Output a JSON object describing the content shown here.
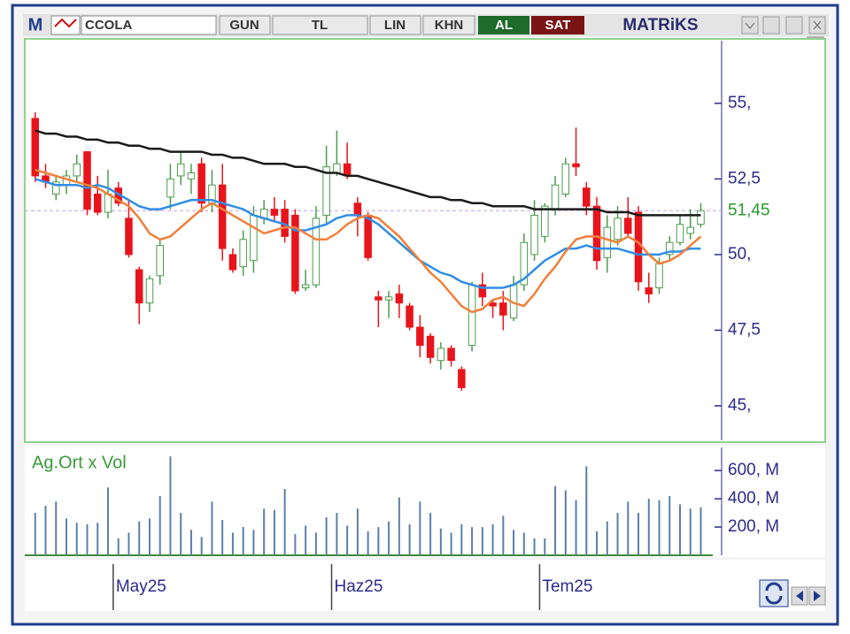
{
  "toolbar": {
    "logo": "M",
    "symbol": "CCOLA",
    "period": "GUN",
    "currency": "TL",
    "scale": "LIN",
    "style": "KHN",
    "buy": "AL",
    "sell": "SAT",
    "brand": "MATRiKS"
  },
  "chart_data": [
    {
      "type": "candlestick",
      "xlim": [
        -1,
        66
      ],
      "ylim": [
        43.8,
        57.1
      ],
      "yticks": [
        {
          "value": 55,
          "label": "55,"
        },
        {
          "value": 52.5,
          "label": "52,5"
        },
        {
          "value": 50,
          "label": "50,"
        },
        {
          "value": 47.5,
          "label": "47,5"
        },
        {
          "value": 45,
          "label": "45,"
        }
      ],
      "xticks": [
        {
          "value": 7.5,
          "label": "May25"
        },
        {
          "value": 28.5,
          "label": "Haz25"
        },
        {
          "value": 48.5,
          "label": "Tem25"
        }
      ],
      "last_price": {
        "value": 51.45,
        "label": "51,45"
      },
      "up_color": "#4e9a4e",
      "down_color": "#e8141c",
      "open": [
        54.5,
        52.6,
        52.0,
        52.3,
        52.6,
        53.4,
        52.0,
        51.4,
        52.2,
        51.2,
        49.5,
        48.4,
        49.3,
        51.9,
        52.6,
        52.5,
        53.0,
        51.7,
        52.3,
        50.0,
        49.6,
        49.8,
        51.2,
        51.5,
        51.5,
        51.3,
        48.9,
        49.0,
        51.3,
        52.7,
        53.0,
        51.7,
        51.3,
        48.6,
        48.5,
        48.7,
        48.3,
        47.6,
        47.3,
        46.5,
        46.9,
        46.2,
        47.0,
        49.0,
        48.4,
        48.4,
        47.9,
        49.0,
        50.0,
        50.6,
        51.5,
        52.0,
        53.0,
        52.2,
        51.6,
        49.9,
        50.5,
        51.2,
        51.4,
        48.9,
        48.9,
        50.0,
        50.4,
        50.7,
        51.0
      ],
      "high": [
        54.7,
        53.0,
        52.6,
        52.8,
        53.3,
        53.4,
        52.6,
        52.8,
        52.4,
        51.8,
        49.6,
        49.3,
        50.5,
        53.0,
        53.4,
        53.0,
        53.2,
        52.8,
        53.0,
        50.2,
        50.8,
        51.6,
        51.8,
        51.9,
        51.8,
        51.5,
        49.5,
        51.6,
        53.6,
        54.1,
        53.7,
        51.9,
        51.4,
        48.8,
        48.8,
        49.0,
        48.4,
        48.0,
        47.4,
        47.1,
        47.0,
        46.3,
        49.1,
        49.4,
        48.5,
        48.8,
        49.3,
        50.7,
        51.8,
        51.7,
        52.6,
        53.2,
        54.2,
        52.4,
        51.9,
        51.3,
        51.6,
        51.9,
        51.6,
        49.4,
        49.9,
        50.6,
        51.3,
        51.5,
        51.7
      ],
      "low": [
        52.4,
        52.2,
        51.8,
        52.0,
        52.4,
        51.3,
        51.3,
        51.2,
        51.6,
        49.9,
        47.7,
        48.1,
        49.0,
        51.5,
        52.3,
        52.0,
        51.4,
        51.4,
        49.8,
        49.4,
        49.3,
        49.4,
        51.0,
        51.1,
        50.4,
        48.7,
        48.8,
        48.9,
        51.0,
        52.6,
        52.5,
        50.6,
        49.8,
        47.6,
        47.9,
        47.9,
        47.5,
        46.6,
        46.4,
        46.2,
        46.3,
        45.5,
        46.8,
        48.3,
        47.9,
        47.5,
        47.8,
        48.8,
        49.8,
        50.4,
        51.3,
        51.9,
        52.6,
        51.3,
        49.5,
        49.4,
        50.3,
        50.6,
        48.8,
        48.4,
        48.7,
        49.8,
        50.3,
        50.5,
        50.9
      ],
      "close": [
        52.6,
        52.4,
        52.4,
        52.6,
        53.0,
        51.5,
        51.4,
        52.0,
        51.7,
        50.0,
        48.4,
        49.2,
        50.3,
        52.5,
        53.0,
        52.7,
        51.7,
        52.3,
        50.2,
        49.5,
        50.5,
        51.3,
        51.5,
        51.3,
        50.6,
        48.8,
        49.0,
        51.2,
        52.9,
        53.0,
        52.6,
        51.3,
        49.9,
        48.5,
        48.6,
        48.4,
        47.6,
        47.0,
        46.6,
        46.9,
        46.5,
        45.6,
        49.0,
        48.6,
        48.3,
        48.0,
        49.0,
        50.4,
        51.3,
        51.6,
        52.3,
        53.0,
        52.9,
        51.6,
        49.8,
        50.9,
        51.2,
        50.7,
        49.1,
        48.7,
        49.7,
        50.4,
        51.0,
        50.9,
        51.45
      ],
      "series": [
        {
          "color": "#1a1a1a",
          "values": [
            54.1,
            54.0,
            54.0,
            53.9,
            53.9,
            53.8,
            53.8,
            53.7,
            53.7,
            53.6,
            53.6,
            53.5,
            53.5,
            53.4,
            53.4,
            53.4,
            53.4,
            53.3,
            53.3,
            53.2,
            53.2,
            53.1,
            53.0,
            53.0,
            53.0,
            52.9,
            52.9,
            52.8,
            52.7,
            52.7,
            52.6,
            52.6,
            52.5,
            52.4,
            52.3,
            52.2,
            52.1,
            52.0,
            51.9,
            51.9,
            51.8,
            51.8,
            51.7,
            51.7,
            51.6,
            51.6,
            51.6,
            51.6,
            51.5,
            51.5,
            51.5,
            51.5,
            51.5,
            51.5,
            51.5,
            51.4,
            51.4,
            51.4,
            51.3,
            51.3,
            51.3,
            51.3,
            51.3,
            51.3,
            51.3
          ]
        },
        {
          "color": "#2f8ee6",
          "values": [
            52.5,
            52.4,
            52.3,
            52.3,
            52.3,
            52.2,
            52.3,
            52.2,
            52.0,
            51.8,
            51.6,
            51.5,
            51.5,
            51.6,
            51.7,
            51.8,
            51.8,
            51.8,
            51.7,
            51.6,
            51.5,
            51.3,
            51.2,
            51.1,
            51.0,
            50.8,
            50.8,
            50.9,
            51.0,
            51.2,
            51.3,
            51.3,
            51.2,
            51.0,
            50.7,
            50.4,
            50.1,
            49.8,
            49.6,
            49.4,
            49.3,
            49.1,
            49.0,
            48.9,
            48.9,
            48.9,
            49.0,
            49.2,
            49.5,
            49.8,
            50.0,
            50.2,
            50.2,
            50.3,
            50.2,
            50.2,
            50.2,
            50.1,
            50.0,
            50.0,
            50.0,
            50.1,
            50.1,
            50.2,
            50.2
          ]
        },
        {
          "color": "#f07f3a",
          "values": [
            52.8,
            52.7,
            52.6,
            52.5,
            52.4,
            52.3,
            52.2,
            52.0,
            51.8,
            51.6,
            51.2,
            50.7,
            50.5,
            50.6,
            50.9,
            51.2,
            51.5,
            51.7,
            51.5,
            51.3,
            51.1,
            50.9,
            50.7,
            50.8,
            50.9,
            50.9,
            50.7,
            50.5,
            50.5,
            50.7,
            51.0,
            51.2,
            51.3,
            51.2,
            50.9,
            50.6,
            50.2,
            49.8,
            49.4,
            49.1,
            48.7,
            48.3,
            48.1,
            48.2,
            48.5,
            48.6,
            48.4,
            48.3,
            48.7,
            49.2,
            49.6,
            50.1,
            50.5,
            50.6,
            50.6,
            50.5,
            50.4,
            50.6,
            50.4,
            50.0,
            49.7,
            49.8,
            50.0,
            50.3,
            50.6
          ]
        }
      ]
    },
    {
      "type": "bar",
      "title": "Ag.Ort x Vol",
      "color": "#5b7fa8",
      "ylim": [
        0,
        770
      ],
      "yticks": [
        {
          "value": 200,
          "label": "200, M"
        },
        {
          "value": 400,
          "label": "400, M"
        },
        {
          "value": 600,
          "label": "600, M"
        }
      ],
      "values": [
        300,
        350,
        380,
        260,
        230,
        220,
        230,
        480,
        120,
        160,
        240,
        260,
        420,
        700,
        300,
        180,
        130,
        380,
        250,
        160,
        200,
        180,
        330,
        320,
        470,
        150,
        210,
        160,
        270,
        300,
        210,
        330,
        170,
        200,
        240,
        410,
        220,
        380,
        300,
        190,
        160,
        220,
        200,
        200,
        220,
        280,
        180,
        160,
        120,
        120,
        490,
        460,
        390,
        630,
        170,
        240,
        300,
        380,
        300,
        400,
        390,
        420,
        360,
        330,
        340
      ]
    }
  ]
}
